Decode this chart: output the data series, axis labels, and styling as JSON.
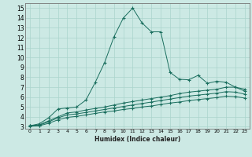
{
  "xlabel": "Humidex (Indice chaleur)",
  "ylabel": "",
  "xlim": [
    -0.5,
    23.5
  ],
  "ylim": [
    2.8,
    15.5
  ],
  "xticks": [
    0,
    1,
    2,
    3,
    4,
    5,
    6,
    7,
    8,
    9,
    10,
    11,
    12,
    13,
    14,
    15,
    16,
    17,
    18,
    19,
    20,
    21,
    22,
    23
  ],
  "yticks": [
    3,
    4,
    5,
    6,
    7,
    8,
    9,
    10,
    11,
    12,
    13,
    14,
    15
  ],
  "bg_color": "#cce9e4",
  "grid_color": "#aad4cc",
  "line_color": "#1a6e5e",
  "line1_x": [
    0,
    1,
    2,
    3,
    4,
    5,
    6,
    7,
    8,
    9,
    10,
    11,
    12,
    13,
    14,
    15,
    16,
    17,
    18,
    19,
    20,
    21,
    22,
    23
  ],
  "line1_y": [
    3.1,
    3.3,
    3.9,
    4.8,
    4.9,
    5.0,
    5.7,
    7.5,
    9.5,
    12.1,
    14.0,
    15.0,
    13.5,
    12.6,
    12.6,
    8.5,
    7.8,
    7.75,
    8.2,
    7.4,
    7.6,
    7.5,
    7.0,
    6.6
  ],
  "line2_x": [
    0,
    1,
    2,
    3,
    4,
    5,
    6,
    7,
    8,
    9,
    10,
    11,
    12,
    13,
    14,
    15,
    16,
    17,
    18,
    19,
    20,
    21,
    22,
    23
  ],
  "line2_y": [
    3.1,
    3.2,
    3.6,
    4.0,
    4.4,
    4.5,
    4.7,
    4.85,
    5.0,
    5.2,
    5.4,
    5.55,
    5.7,
    5.85,
    6.0,
    6.15,
    6.35,
    6.5,
    6.6,
    6.7,
    6.8,
    7.0,
    7.0,
    6.8
  ],
  "line3_x": [
    0,
    1,
    2,
    3,
    4,
    5,
    6,
    7,
    8,
    9,
    10,
    11,
    12,
    13,
    14,
    15,
    16,
    17,
    18,
    19,
    20,
    21,
    22,
    23
  ],
  "line3_y": [
    3.1,
    3.15,
    3.5,
    3.9,
    4.2,
    4.3,
    4.45,
    4.6,
    4.75,
    4.9,
    5.05,
    5.2,
    5.35,
    5.5,
    5.65,
    5.8,
    5.95,
    6.1,
    6.2,
    6.3,
    6.4,
    6.55,
    6.5,
    6.3
  ],
  "line4_x": [
    0,
    1,
    2,
    3,
    4,
    5,
    6,
    7,
    8,
    9,
    10,
    11,
    12,
    13,
    14,
    15,
    16,
    17,
    18,
    19,
    20,
    21,
    22,
    23
  ],
  "line4_y": [
    3.05,
    3.1,
    3.35,
    3.7,
    3.95,
    4.05,
    4.2,
    4.35,
    4.5,
    4.6,
    4.75,
    4.85,
    5.0,
    5.1,
    5.25,
    5.4,
    5.5,
    5.65,
    5.75,
    5.85,
    5.95,
    6.1,
    6.05,
    5.9
  ]
}
